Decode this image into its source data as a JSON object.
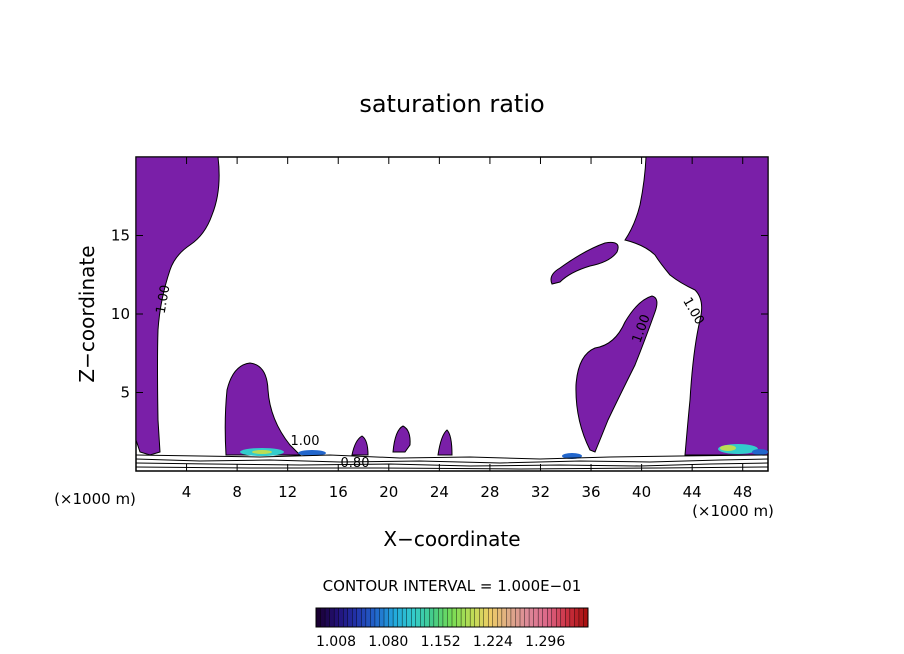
{
  "chart_data": {
    "type": "contour",
    "title": "saturation ratio",
    "xlabel": "X−coordinate",
    "ylabel": "Z−coordinate",
    "x_unit_label": "(×1000 m)",
    "z_unit_label": "(×1000 m)",
    "xlim": [
      0,
      50
    ],
    "ylim": [
      0,
      20
    ],
    "x_ticks": [
      "4",
      "8",
      "12",
      "16",
      "20",
      "24",
      "28",
      "32",
      "36",
      "40",
      "44",
      "48"
    ],
    "y_ticks": [
      "5",
      "10",
      "15"
    ],
    "contour_interval_text": "CONTOUR INTERVAL = 1.000E−01",
    "contour_labels": [
      "1.00",
      "1.00",
      "1.00",
      "1.00",
      "0.80"
    ],
    "colorbar": {
      "ticks": [
        "1.008",
        "1.080",
        "1.152",
        "1.224",
        "1.296"
      ],
      "colors": [
        "#1a0033",
        "#221177",
        "#2233aa",
        "#2266cc",
        "#22aadd",
        "#33cccc",
        "#44cc88",
        "#77dd55",
        "#bbdd55",
        "#eecc66",
        "#ddaa88",
        "#dd8899",
        "#dd6688",
        "#cc3344",
        "#aa1111"
      ]
    },
    "fill_color": "#7a1fa8"
  }
}
